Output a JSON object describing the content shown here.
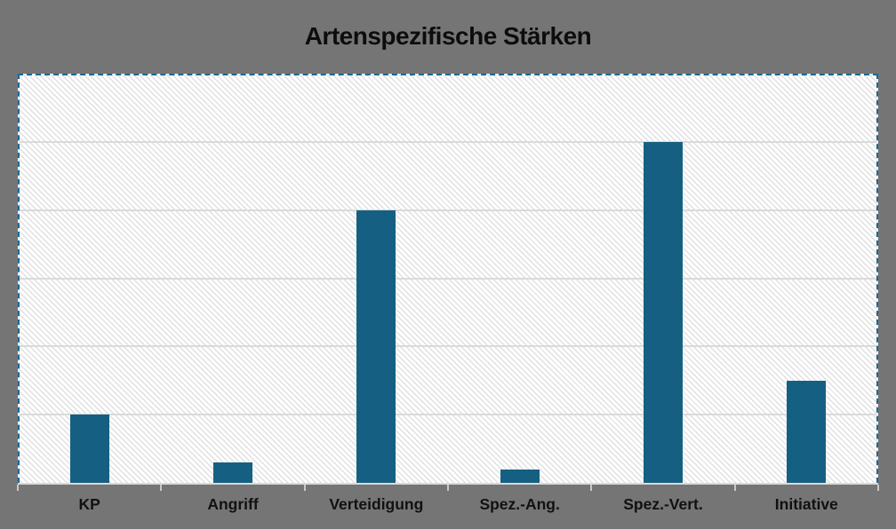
{
  "chart": {
    "title": "Artenspezifische Stärken",
    "selection_state": "plot-area-selected-dashed-outline",
    "legend": "none"
  },
  "chart_data": {
    "type": "bar",
    "title": "Artenspezifische Stärken",
    "categories": [
      "KP",
      "Angriff",
      "Verteidigung",
      "Spez.-Ang.",
      "Spez.-Vert.",
      "Initiative"
    ],
    "values": [
      1,
      0.3,
      4,
      0.2,
      5,
      1.5
    ],
    "xlabel": "",
    "ylabel": "",
    "ylim": [
      0,
      6
    ],
    "gridline_interval": 1,
    "y_tick_labels_visible": false,
    "value_note": "no numeric y-axis labels shown; values estimated in gridline units (KP, Verteidigung and Spez.-Vert. tops align exactly with gridlines 1, 4 and 5; Initiative is midway between 1 and 2)",
    "grid": "horizontal gridlines on, hatched plot fill",
    "legend_position": "none",
    "bar_color": "#156082"
  },
  "colors": {
    "background": "#757575",
    "bar": "#156082",
    "selection_dash": "#1c6794",
    "gridline": "#dadada",
    "axis_tick": "#c9c9c9",
    "plot_fill": "#ffffff",
    "hatch_line": "#e0e0e0",
    "title_text": "#0d0d0d",
    "label_text": "#111111"
  }
}
